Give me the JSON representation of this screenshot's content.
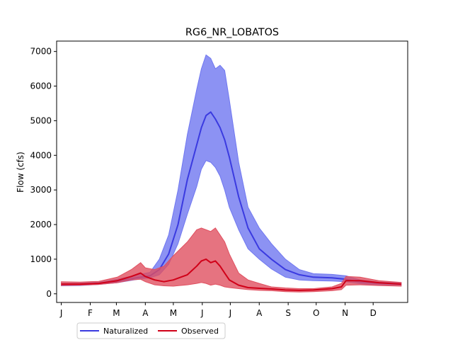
{
  "chart_data": {
    "type": "area",
    "title": "RG6_NR_LOBATOS",
    "xlabel": "",
    "ylabel": "Flow (cfs)",
    "xlim": [
      -5,
      371
    ],
    "ylim": [
      -250,
      7300
    ],
    "grid": false,
    "legend_position": "bottom-left, below the plot",
    "x_ticks": [
      {
        "x": 0,
        "label": "J"
      },
      {
        "x": 31,
        "label": "F"
      },
      {
        "x": 59,
        "label": "M"
      },
      {
        "x": 90,
        "label": "A"
      },
      {
        "x": 120,
        "label": "M"
      },
      {
        "x": 151,
        "label": "J"
      },
      {
        "x": 181,
        "label": "J"
      },
      {
        "x": 212,
        "label": "A"
      },
      {
        "x": 243,
        "label": "S"
      },
      {
        "x": 273,
        "label": "O"
      },
      {
        "x": 304,
        "label": "N"
      },
      {
        "x": 334,
        "label": "D"
      }
    ],
    "y_ticks": [
      0,
      1000,
      2000,
      3000,
      4000,
      5000,
      6000,
      7000
    ],
    "series": [
      {
        "name": "Naturalized",
        "color": "#3a3ae0",
        "fill_color": "#6f77f0",
        "x": [
          0,
          20,
          40,
          60,
          80,
          95,
          105,
          115,
          125,
          135,
          145,
          150,
          155,
          160,
          165,
          170,
          175,
          180,
          190,
          200,
          212,
          225,
          240,
          255,
          270,
          290,
          305,
          320,
          340,
          364
        ],
        "median": [
          260,
          270,
          300,
          360,
          460,
          520,
          700,
          1150,
          2000,
          3300,
          4300,
          4800,
          5150,
          5250,
          5050,
          4800,
          4450,
          3950,
          2800,
          1900,
          1300,
          1000,
          700,
          550,
          480,
          460,
          420,
          340,
          300,
          280
        ],
        "lower": [
          230,
          240,
          270,
          320,
          410,
          460,
          550,
          850,
          1450,
          2300,
          3100,
          3600,
          3850,
          3800,
          3650,
          3400,
          3000,
          2500,
          1850,
          1300,
          1000,
          720,
          480,
          400,
          380,
          370,
          350,
          290,
          260,
          250
        ],
        "upper": [
          300,
          310,
          340,
          420,
          540,
          620,
          1000,
          1700,
          3000,
          4600,
          5900,
          6500,
          6900,
          6800,
          6500,
          6600,
          6450,
          5600,
          3800,
          2500,
          1900,
          1450,
          1000,
          700,
          580,
          560,
          520,
          400,
          340,
          320
        ]
      },
      {
        "name": "Observed",
        "color": "#d00018",
        "fill_color": "#e05060",
        "x": [
          0,
          20,
          40,
          60,
          75,
          85,
          90,
          100,
          110,
          120,
          135,
          145,
          150,
          155,
          160,
          165,
          170,
          175,
          180,
          190,
          200,
          212,
          225,
          240,
          255,
          270,
          290,
          300,
          305,
          320,
          340,
          364
        ],
        "median": [
          280,
          280,
          300,
          380,
          500,
          600,
          500,
          400,
          350,
          400,
          550,
          800,
          950,
          1000,
          900,
          950,
          800,
          600,
          400,
          250,
          180,
          160,
          140,
          110,
          100,
          110,
          150,
          200,
          380,
          380,
          320,
          280
        ],
        "lower": [
          240,
          250,
          270,
          320,
          400,
          420,
          350,
          260,
          230,
          220,
          260,
          300,
          330,
          300,
          250,
          280,
          250,
          200,
          180,
          150,
          120,
          100,
          90,
          60,
          50,
          60,
          90,
          120,
          250,
          260,
          240,
          220
        ],
        "upper": [
          350,
          340,
          360,
          480,
          700,
          900,
          750,
          700,
          800,
          1100,
          1500,
          1850,
          1900,
          1850,
          1800,
          1900,
          1700,
          1500,
          1150,
          600,
          400,
          300,
          200,
          170,
          150,
          150,
          200,
          300,
          500,
          480,
          380,
          330
        ]
      }
    ]
  }
}
